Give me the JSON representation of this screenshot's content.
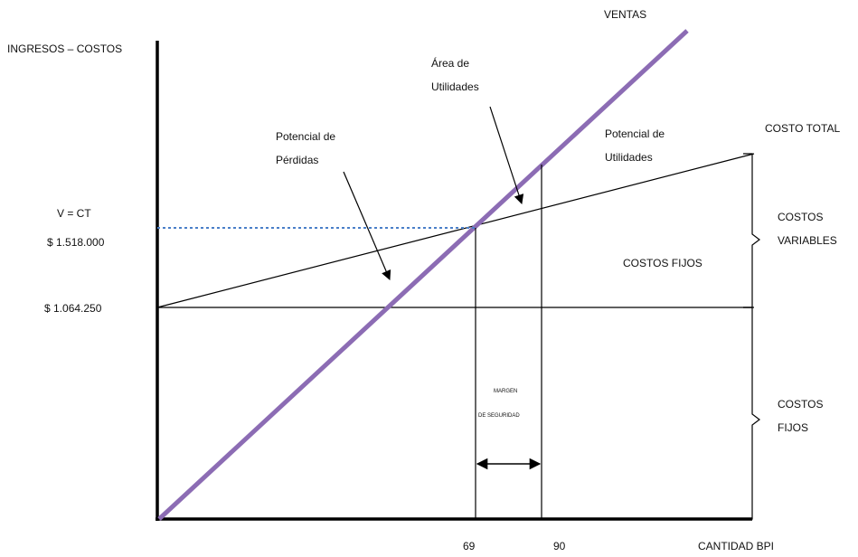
{
  "labels": {
    "y_axis": "INGRESOS – COSTOS",
    "x_axis": "CANTIDAD BPI",
    "ventas": "VENTAS",
    "costo_total": "COSTO TOTAL",
    "v_ct": "V = CT",
    "value_breakeven": "$ 1.518.000",
    "value_fixed": "$ 1.064.250",
    "area_utilidades_1": "Área de",
    "area_utilidades_2": "Utilidades",
    "potencial_perdidas_1": "Potencial de",
    "potencial_perdidas_2": "Pérdidas",
    "potencial_utilidades_1": "Potencial de",
    "potencial_utilidades_2": "Utilidades",
    "costos_fijos_inner": "COSTOS FIJOS",
    "costos_variables_1": "COSTOS",
    "costos_variables_2": "VARIABLES",
    "costos_fijos_1": "COSTOS",
    "costos_fijos_2": "FIJOS",
    "margen_1": "MARGEN",
    "margen_2": "DE SEGURIDAD",
    "tick_69": "69",
    "tick_90": "90"
  },
  "colors": {
    "sales_line": "#8c6cb4",
    "dotted_line": "#4a7fc8",
    "ink": "#000000"
  }
}
